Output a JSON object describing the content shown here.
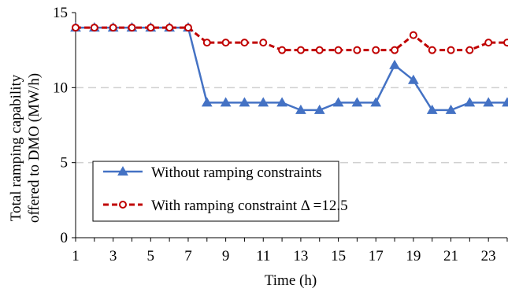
{
  "chart_data": {
    "type": "line",
    "xlabel": "Time (h)",
    "ylabel_line1": "Total ramping capability",
    "ylabel_line2": "offered to DMO (MW/h)",
    "xlim": [
      1,
      24
    ],
    "ylim": [
      0,
      15
    ],
    "x_ticks": [
      1,
      3,
      5,
      7,
      9,
      11,
      13,
      15,
      17,
      19,
      21,
      23
    ],
    "y_ticks": [
      0,
      5,
      10,
      15
    ],
    "grid": "horizontal dashed at 5, 10",
    "legend_position": "bottom-left",
    "x": [
      1,
      2,
      3,
      4,
      5,
      6,
      7,
      8,
      9,
      10,
      11,
      12,
      13,
      14,
      15,
      16,
      17,
      18,
      19,
      20,
      21,
      22,
      23,
      24
    ],
    "series": [
      {
        "name": "Without ramping constraints",
        "color": "#4472C4",
        "marker": "triangle",
        "values": [
          14,
          14,
          14,
          14,
          14,
          14,
          14,
          9,
          9,
          9,
          9,
          9,
          8.5,
          8.5,
          9,
          9,
          9,
          11.5,
          10.5,
          8.5,
          8.5,
          9,
          9,
          9
        ]
      },
      {
        "name": "With ramping constraint Δ =12.5",
        "color": "#C00000",
        "marker": "circle",
        "values": [
          14,
          14,
          14,
          14,
          14,
          14,
          14,
          13,
          13,
          13,
          13,
          12.5,
          12.5,
          12.5,
          12.5,
          12.5,
          12.5,
          12.5,
          13.5,
          12.5,
          12.5,
          12.5,
          13,
          13
        ]
      }
    ]
  }
}
